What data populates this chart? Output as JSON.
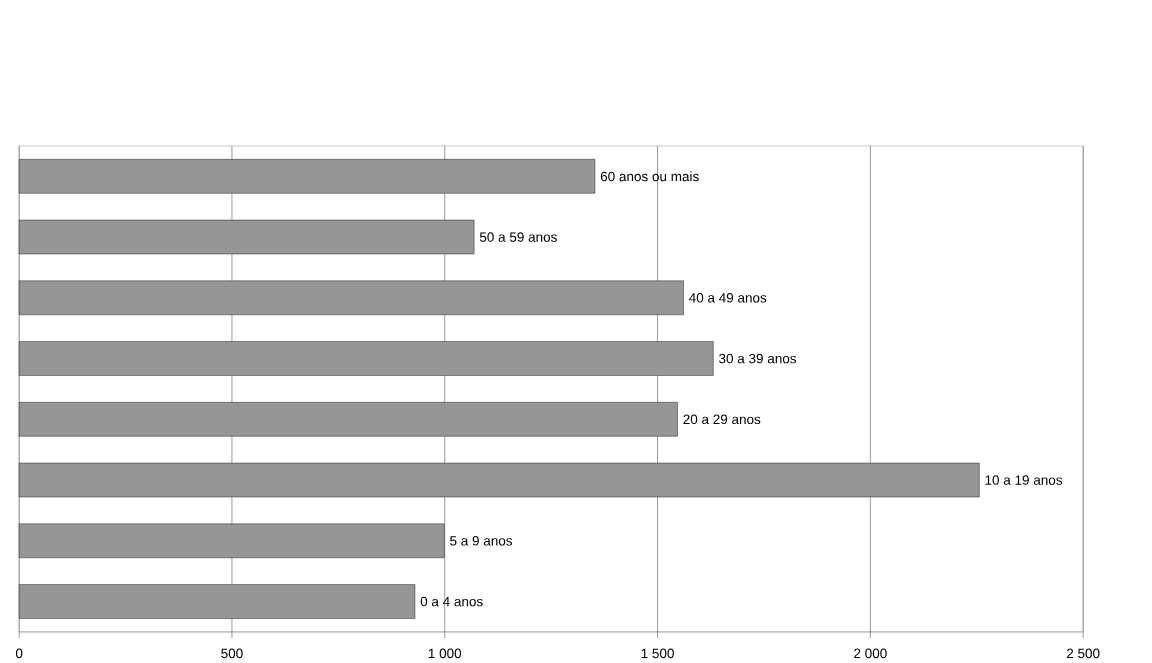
{
  "chart_data": {
    "type": "bar",
    "orientation": "horizontal",
    "categories": [
      "60 anos ou mais",
      "50 a 59 anos",
      "40 a 49 anos",
      "30 a 39 anos",
      "20 a 29 anos",
      "10 a 19 anos",
      "5 a 9 anos",
      "0 a 4 anos"
    ],
    "values": [
      1353,
      1069,
      1561,
      1631,
      1547,
      2256,
      999,
      930
    ],
    "color": "#969696",
    "xlim": [
      0,
      2500
    ],
    "xticks": [
      0,
      500,
      {
        "value": 1000,
        "label": "1 000"
      },
      {
        "value": 1500,
        "label": "1 500"
      },
      {
        "value": 2000,
        "label": "2 000"
      },
      {
        "value": 2500,
        "label": "2 500"
      }
    ],
    "grid": "x"
  }
}
